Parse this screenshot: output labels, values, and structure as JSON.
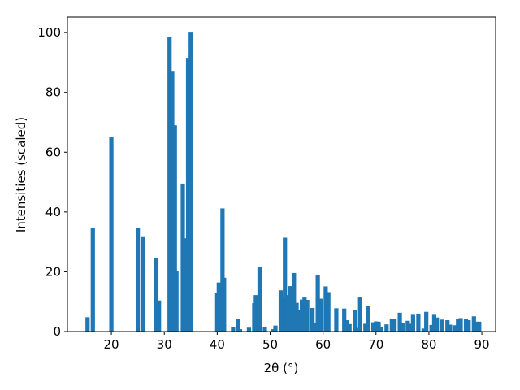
{
  "chart_data": {
    "type": "bar",
    "xlabel": "2θ (°)",
    "ylabel": "Intensities (scaled)",
    "color": "#1f77b4",
    "x": [
      15.5,
      16.5,
      20,
      25,
      26,
      28.5,
      29,
      31,
      31.5,
      32,
      32.3,
      33.5,
      33.8,
      34,
      34.5,
      35,
      40,
      40.3,
      41,
      41.3,
      43,
      44,
      44.3,
      46,
      47,
      47.3,
      48,
      49,
      50.5,
      51,
      52,
      52.3,
      52.8,
      53.2,
      53.8,
      54.5,
      55,
      55.5,
      56,
      56.5,
      57,
      58,
      58.5,
      59,
      59.5,
      60.5,
      61,
      62.5,
      64,
      64.5,
      65,
      66,
      66.5,
      67,
      68,
      68.5,
      69.5,
      70,
      70.5,
      71,
      72,
      73,
      73.5,
      74.5,
      75,
      76,
      76.5,
      77,
      78,
      79,
      79.5,
      80.5,
      81,
      81.5,
      82.5,
      83.5,
      84,
      85,
      85.5,
      86,
      87,
      87.5,
      88.5,
      89,
      89.5
    ],
    "values": [
      4.8,
      34.6,
      65.2,
      34.6,
      31.6,
      24.5,
      10.4,
      98.4,
      87.2,
      69,
      20.3,
      49.5,
      31.2,
      11,
      91.3,
      100,
      13,
      16.4,
      41.2,
      18,
      1.6,
      4.2,
      0.8,
      1.3,
      9.5,
      12.2,
      21.7,
      1.6,
      0.8,
      2,
      13.8,
      11.6,
      31.4,
      12.2,
      15.2,
      19.6,
      9.6,
      7.1,
      10.7,
      11.4,
      10.6,
      7.9,
      3,
      18.9,
      11,
      15.1,
      13.2,
      7.8,
      7.7,
      3.8,
      2.5,
      7.1,
      1.2,
      11.4,
      2.6,
      8.5,
      3.1,
      3.4,
      3.3,
      1.4,
      2.4,
      4.2,
      4.3,
      6.3,
      2.8,
      3.6,
      2.6,
      5.6,
      6,
      1,
      6.6,
      2.2,
      5.6,
      4.7,
      4,
      3.8,
      2.3,
      2.1,
      4.2,
      4.5,
      4.1,
      3.8,
      5.1,
      3.3,
      3.3
    ],
    "xlim": [
      11.7,
      92.6
    ],
    "ylim": [
      0,
      105.2
    ],
    "xticks": [
      20,
      30,
      40,
      50,
      60,
      70,
      80,
      90
    ],
    "yticks": [
      0,
      20,
      40,
      60,
      80,
      100
    ]
  }
}
